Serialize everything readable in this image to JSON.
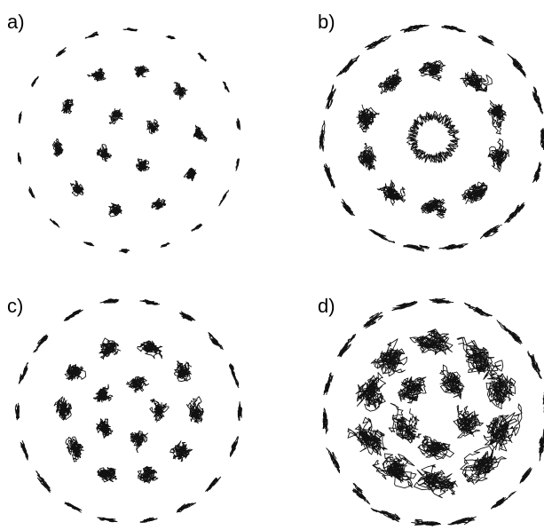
{
  "panels": [
    {
      "label": "a)",
      "outer_ring_blobs": 18,
      "middle_ring_blobs": 10,
      "inner_ring_blobs": 4,
      "outer_scale": 0.35,
      "middle_scale": 0.85,
      "inner_scale": 0.95
    },
    {
      "label": "b)",
      "outer_ring_blobs": 18,
      "middle_ring_blobs": 10,
      "inner_ring_blobs": 1,
      "outer_scale": 1.0,
      "middle_scale": 1.5,
      "inner_scale": 1.0
    },
    {
      "label": "c)",
      "outer_ring_blobs": 18,
      "middle_ring_blobs": 10,
      "inner_ring_blobs": 5,
      "outer_scale": 0.8,
      "middle_scale": 1.3,
      "inner_scale": 1.3
    },
    {
      "label": "d)",
      "outer_ring_blobs": 18,
      "middle_ring_blobs": 10,
      "inner_ring_blobs": 5,
      "outer_scale": 1.1,
      "middle_scale": 2.4,
      "inner_scale": 2.2
    }
  ],
  "colors": {
    "trajectory": "#111111",
    "background": "#ffffff"
  }
}
